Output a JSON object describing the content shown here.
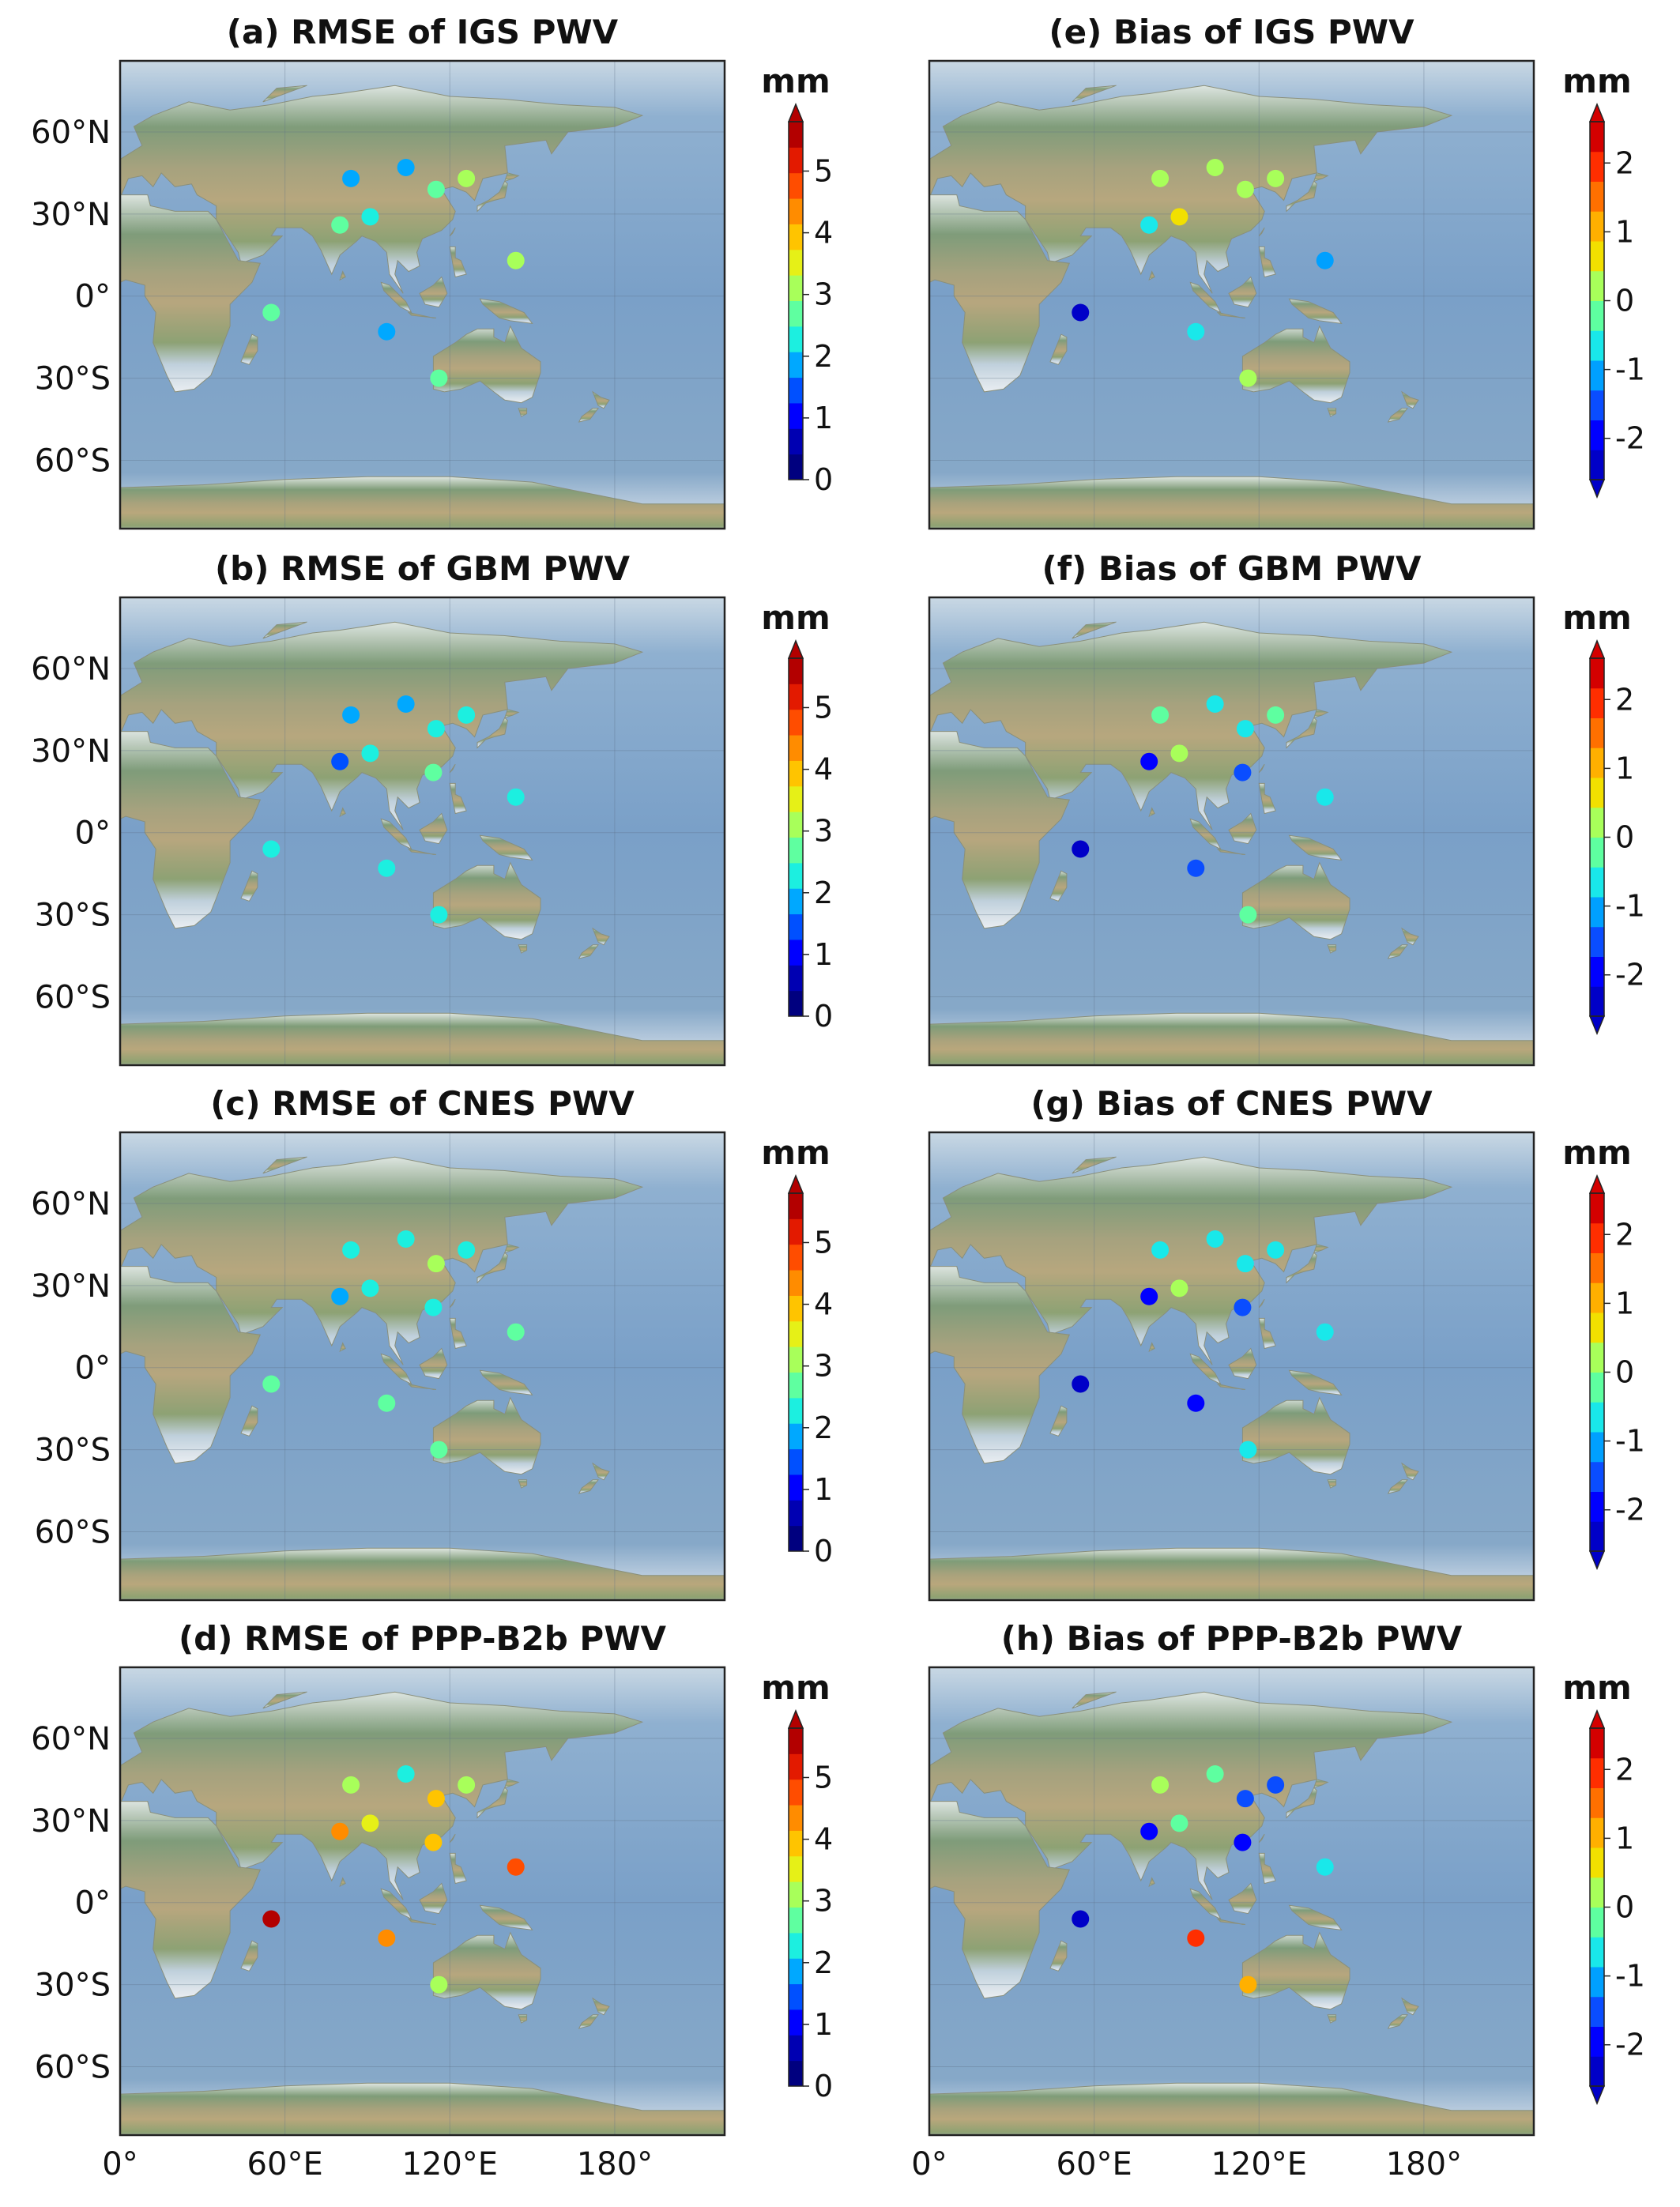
{
  "figure": {
    "lat_ticks": [
      "60°N",
      "30°N",
      "0°",
      "30°S",
      "60°S"
    ],
    "lon_ticks": [
      "0°",
      "60°E",
      "120°E",
      "180°"
    ],
    "map_extent": {
      "lon": [
        0,
        220
      ],
      "lat": [
        -85,
        86
      ]
    },
    "unit_label": "mm"
  },
  "colorbars": {
    "rmse": {
      "ticks": [
        "0",
        "1",
        "2",
        "3",
        "4",
        "5"
      ],
      "range": [
        0,
        5.8
      ],
      "step": 0.5,
      "extend": "max"
    },
    "bias": {
      "ticks": [
        "-2",
        "-1",
        "0",
        "1",
        "2"
      ],
      "range": [
        -2.6,
        2.6
      ],
      "step": 0.5,
      "extend": "both"
    }
  },
  "panels": [
    {
      "title": "(a) RMSE of IGS PWV",
      "kind": "rmse",
      "values": [
        1.8,
        1.8,
        2.8,
        3.0,
        2.5,
        2.4,
        3.2,
        2.6,
        1.8,
        2.6
      ]
    },
    {
      "title": "(b) RMSE of GBM PWV",
      "kind": "rmse",
      "values": [
        1.8,
        1.8,
        2.4,
        2.4,
        1.4,
        2.2,
        2.6,
        2.2,
        2.4,
        2.4,
        2.4
      ]
    },
    {
      "title": "(c) RMSE of CNES PWV",
      "kind": "rmse",
      "values": [
        2.2,
        2.2,
        3.2,
        2.2,
        1.8,
        2.4,
        2.2,
        2.6,
        2.8,
        2.6,
        2.6
      ]
    },
    {
      "title": "(d) RMSE of PPP-B2b PWV",
      "kind": "rmse",
      "values": [
        3.0,
        2.2,
        3.8,
        3.0,
        4.2,
        3.6,
        3.9,
        4.8,
        5.6,
        4.2,
        3.0
      ]
    },
    {
      "title": "(e) Bias of IGS PWV",
      "kind": "bias",
      "values": [
        0.2,
        0.2,
        0.2,
        0.2,
        -0.8,
        0.6,
        -1.2,
        -2.2,
        -0.7,
        0.4
      ]
    },
    {
      "title": "(f) Bias of GBM PWV",
      "kind": "bias",
      "values": [
        -0.3,
        -0.6,
        -0.5,
        -0.3,
        -1.8,
        0.3,
        -1.5,
        -0.6,
        -2.2,
        -1.4,
        -0.2
      ]
    },
    {
      "title": "(g) Bias of CNES PWV",
      "kind": "bias",
      "values": [
        -0.8,
        -0.8,
        -0.8,
        -0.8,
        -1.9,
        0.3,
        -1.6,
        -0.8,
        -2.3,
        -1.8,
        -0.7
      ]
    },
    {
      "title": "(h) Bias of PPP-B2b PWV",
      "kind": "bias",
      "values": [
        0.2,
        -0.2,
        -1.7,
        -1.5,
        -2.0,
        -0.4,
        -1.8,
        -0.8,
        -2.5,
        1.8,
        1.1
      ]
    }
  ],
  "stations": {
    "a": [
      [
        84,
        43
      ],
      [
        104,
        47
      ],
      [
        115,
        39
      ],
      [
        126,
        43
      ],
      [
        80,
        26
      ],
      [
        91,
        29
      ],
      [
        144,
        13
      ],
      [
        55,
        -6
      ],
      [
        97,
        -13
      ],
      [
        116,
        -30
      ]
    ],
    "b": [
      [
        84,
        43
      ],
      [
        104,
        47
      ],
      [
        115,
        38
      ],
      [
        126,
        43
      ],
      [
        80,
        26
      ],
      [
        91,
        29
      ],
      [
        114,
        22
      ],
      [
        144,
        13
      ],
      [
        55,
        -6
      ],
      [
        97,
        -13
      ],
      [
        116,
        -30
      ]
    ]
  },
  "colors": {
    "ocean": "#7aa0c8",
    "land": "#a8a27c",
    "land_green": "#7f9c78",
    "ice": "#eef1f4",
    "frame": "#222222",
    "cmap_rmse": [
      "#00007f",
      "#0000b2",
      "#0000ff",
      "#0050ff",
      "#00a8ff",
      "#1cefe0",
      "#5fffa0",
      "#a8ff5a",
      "#e6f017",
      "#ffc400",
      "#ff8c00",
      "#ff4d00",
      "#e31a00",
      "#b30000"
    ],
    "cmap_bias": [
      "#0000c8",
      "#0000ff",
      "#0a4dff",
      "#00a0ff",
      "#19e8ea",
      "#5effa0",
      "#a8ff5a",
      "#f2e000",
      "#ffb000",
      "#ff7000",
      "#ff2e00",
      "#d40000"
    ]
  }
}
